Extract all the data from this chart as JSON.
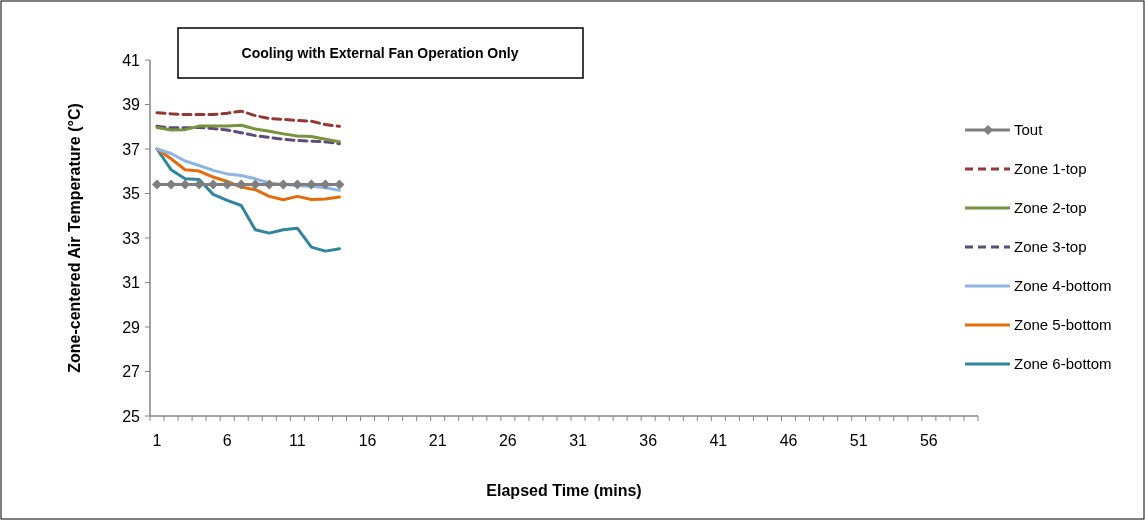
{
  "chart_data": {
    "type": "line",
    "title": "Cooling with External Fan Operation Only",
    "xlabel": "Elapsed Time (mins)",
    "ylabel": "Zone-centered Air Temperature (°C)",
    "x": [
      1,
      2,
      3,
      4,
      5,
      6,
      7,
      8,
      9,
      10,
      11,
      12,
      13,
      14
    ],
    "xlim": [
      0.5,
      59.5
    ],
    "xticks": [
      {
        "value": 0.5,
        "label": null
      },
      1,
      {
        "value": 1.5,
        "label": null
      },
      {
        "value": 2.5,
        "label": null
      },
      {
        "value": 3.5,
        "label": null
      },
      {
        "value": 4.5,
        "label": null
      },
      {
        "value": 5.5,
        "label": null
      },
      6,
      {
        "value": 6.5,
        "label": null
      },
      {
        "value": 7.5,
        "label": null
      },
      {
        "value": 8.5,
        "label": null
      },
      {
        "value": 9.5,
        "label": null
      },
      {
        "value": 10.5,
        "label": null
      },
      11,
      {
        "value": 11.5,
        "label": null
      },
      {
        "value": 12.5,
        "label": null
      },
      {
        "value": 13.5,
        "label": null
      },
      {
        "value": 14.5,
        "label": null
      },
      {
        "value": 15.5,
        "label": null
      },
      16,
      {
        "value": 16.5,
        "label": null
      },
      {
        "value": 17.5,
        "label": null
      },
      {
        "value": 18.5,
        "label": null
      },
      {
        "value": 19.5,
        "label": null
      },
      {
        "value": 20.5,
        "label": null
      },
      21,
      {
        "value": 21.5,
        "label": null
      },
      {
        "value": 22.5,
        "label": null
      },
      {
        "value": 23.5,
        "label": null
      },
      {
        "value": 24.5,
        "label": null
      },
      {
        "value": 25.5,
        "label": null
      },
      26,
      {
        "value": 26.5,
        "label": null
      },
      {
        "value": 27.5,
        "label": null
      },
      {
        "value": 28.5,
        "label": null
      },
      {
        "value": 29.5,
        "label": null
      },
      {
        "value": 30.5,
        "label": null
      },
      31,
      {
        "value": 31.5,
        "label": null
      },
      {
        "value": 32.5,
        "label": null
      },
      {
        "value": 33.5,
        "label": null
      },
      {
        "value": 34.5,
        "label": null
      },
      {
        "value": 35.5,
        "label": null
      },
      36,
      {
        "value": 36.5,
        "label": null
      },
      {
        "value": 37.5,
        "label": null
      },
      {
        "value": 38.5,
        "label": null
      },
      {
        "value": 39.5,
        "label": null
      },
      {
        "value": 40.5,
        "label": null
      },
      41,
      {
        "value": 41.5,
        "label": null
      },
      {
        "value": 42.5,
        "label": null
      },
      {
        "value": 43.5,
        "label": null
      },
      {
        "value": 44.5,
        "label": null
      },
      {
        "value": 45.5,
        "label": null
      },
      46,
      {
        "value": 46.5,
        "label": null
      },
      {
        "value": 47.5,
        "label": null
      },
      {
        "value": 48.5,
        "label": null
      },
      {
        "value": 49.5,
        "label": null
      },
      {
        "value": 50.5,
        "label": null
      },
      51,
      {
        "value": 51.5,
        "label": null
      },
      {
        "value": 52.5,
        "label": null
      },
      {
        "value": 53.5,
        "label": null
      },
      {
        "value": 54.5,
        "label": null
      },
      {
        "value": 55.5,
        "label": null
      },
      56,
      {
        "value": 56.5,
        "label": null
      },
      {
        "value": 57.5,
        "label": null
      },
      {
        "value": 58.5,
        "label": null
      },
      {
        "value": 59.5,
        "label": null
      }
    ],
    "ylim": [
      25,
      41
    ],
    "yticks": [
      25,
      27,
      29,
      31,
      33,
      35,
      37,
      39,
      41
    ],
    "legend": "right",
    "series": [
      {
        "name": "Tout",
        "color": "#7f7f7f",
        "marker": "diamond",
        "line_style": "solid",
        "values": [
          35.4,
          35.4,
          35.4,
          35.4,
          35.4,
          35.4,
          35.4,
          35.4,
          35.4,
          35.4,
          35.4,
          35.4,
          35.4,
          35.4
        ]
      },
      {
        "name": "Zone 1-top",
        "color": "#953735",
        "marker": "none",
        "line_style": "dashed",
        "values": [
          38.63,
          38.58,
          38.55,
          38.55,
          38.55,
          38.61,
          38.7,
          38.5,
          38.37,
          38.33,
          38.28,
          38.25,
          38.1,
          38.02
        ]
      },
      {
        "name": "Zone 2-top",
        "color": "#77933c",
        "marker": "none",
        "line_style": "solid",
        "values": [
          37.97,
          37.85,
          37.87,
          38.03,
          38.03,
          38.03,
          38.07,
          37.9,
          37.8,
          37.68,
          37.58,
          37.56,
          37.44,
          37.33
        ]
      },
      {
        "name": "Zone 3-top",
        "color": "#604a7b",
        "marker": "none",
        "line_style": "dashed",
        "values": [
          38.02,
          37.95,
          37.95,
          37.97,
          37.92,
          37.85,
          37.73,
          37.6,
          37.52,
          37.44,
          37.38,
          37.35,
          37.32,
          37.24
        ]
      },
      {
        "name": "Zone 4-bottom",
        "color": "#8eb4e3",
        "marker": "none",
        "line_style": "solid",
        "values": [
          37.0,
          36.8,
          36.46,
          36.26,
          36.04,
          35.88,
          35.81,
          35.66,
          35.47,
          35.41,
          35.36,
          35.32,
          35.26,
          35.14
        ]
      },
      {
        "name": "Zone 5-bottom",
        "color": "#e46c0a",
        "marker": "none",
        "line_style": "solid",
        "values": [
          37.0,
          36.56,
          36.07,
          36.01,
          35.74,
          35.54,
          35.29,
          35.17,
          34.87,
          34.72,
          34.87,
          34.73,
          34.75,
          34.84
        ]
      },
      {
        "name": "Zone 6-bottom",
        "color": "#31859c",
        "marker": "none",
        "line_style": "solid",
        "values": [
          37.0,
          36.07,
          35.66,
          35.63,
          34.96,
          34.69,
          34.46,
          33.37,
          33.22,
          33.37,
          33.44,
          32.59,
          32.41,
          32.52
        ]
      }
    ]
  }
}
